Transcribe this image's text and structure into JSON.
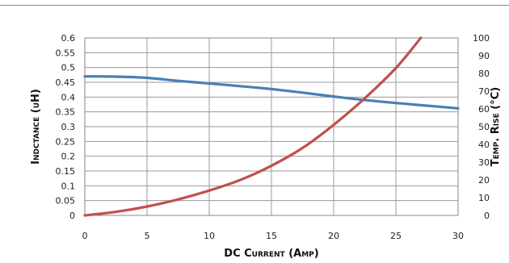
{
  "chart_data": {
    "type": "line",
    "xlabel": "DC Current (Amp)",
    "ylabel": "Indctance (uH)",
    "y2label": "Temp. Rise (°C)",
    "xlim": [
      0,
      30
    ],
    "ylim": [
      0,
      0.6
    ],
    "y2lim": [
      0,
      100
    ],
    "grid": true,
    "x_ticks": [
      "0",
      "5",
      "10",
      "15",
      "20",
      "25",
      "30"
    ],
    "y_ticks": [
      "0",
      "0.05",
      "0.1",
      "0.15",
      "0.2",
      "0.25",
      "0.3",
      "0.35",
      "0.4",
      "0.45",
      "0.5",
      "0.55",
      "0.6"
    ],
    "y2_ticks": [
      "0",
      "10",
      "20",
      "30",
      "40",
      "50",
      "60",
      "70",
      "80",
      "90",
      "100"
    ],
    "series": [
      {
        "axis": "left",
        "color": "#4a7fb8",
        "x": [
          0,
          2.5,
          5,
          7.5,
          10,
          12.5,
          15,
          17.5,
          20,
          22.5,
          25,
          27.5,
          30
        ],
        "y": [
          0.47,
          0.469,
          0.465,
          0.455,
          0.446,
          0.437,
          0.427,
          0.415,
          0.402,
          0.39,
          0.38,
          0.371,
          0.362
        ]
      },
      {
        "axis": "right",
        "color": "#c0504d",
        "x": [
          0,
          2.5,
          5,
          7.5,
          10,
          12.5,
          15,
          17.5,
          20,
          22.5,
          25,
          27
        ],
        "y": [
          0,
          2,
          5,
          9,
          14,
          20,
          28,
          38,
          51,
          66,
          83,
          100
        ]
      }
    ]
  }
}
